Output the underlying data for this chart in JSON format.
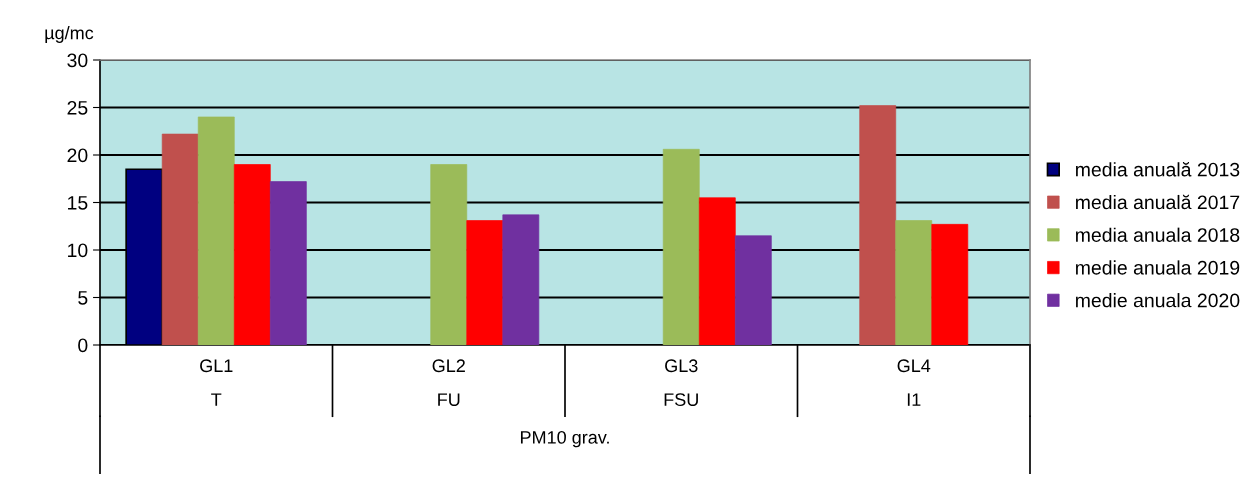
{
  "chart_data": {
    "type": "bar",
    "ylabel": "µg/mc",
    "xlabel": "PM10 grav.",
    "categories": [
      "GL1\nT",
      "GL2\nFU",
      "GL3\nFSU",
      "GL4\nI1"
    ],
    "series": [
      {
        "name": "media anuală 2013",
        "color": "#000080",
        "values": [
          18.5,
          null,
          null,
          null
        ]
      },
      {
        "name": "media anuală 2017",
        "color": "#c0504d",
        "values": [
          22.2,
          null,
          null,
          25.2
        ]
      },
      {
        "name": "media anuala 2018",
        "color": "#9bbb59",
        "values": [
          24.0,
          19.0,
          20.6,
          13.1
        ]
      },
      {
        "name": "medie anuala 2019",
        "color": "#ff0000",
        "values": [
          19.0,
          13.1,
          15.5,
          12.7
        ]
      },
      {
        "name": "medie anuala 2020",
        "color": "#7030a0",
        "values": [
          17.2,
          13.7,
          11.5,
          null
        ]
      }
    ],
    "ylim": [
      0,
      30
    ],
    "yticks": [
      0,
      5,
      10,
      15,
      20,
      25,
      30
    ],
    "grid": "y",
    "legend": "right"
  }
}
